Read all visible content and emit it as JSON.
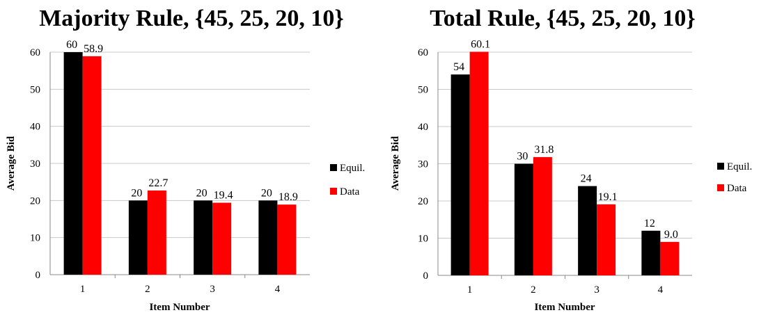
{
  "chart_data": [
    {
      "type": "bar",
      "title": "Majority Rule, {45, 25, 20, 10}",
      "xlabel": "Item Number",
      "ylabel": "Average Bid",
      "categories": [
        "1",
        "2",
        "3",
        "4"
      ],
      "ylim": [
        0,
        60
      ],
      "yticks": [
        0,
        10,
        20,
        30,
        40,
        50,
        60
      ],
      "grid": true,
      "legend_position": "right",
      "series": [
        {
          "name": "Equil.",
          "color": "#000000",
          "values": [
            60,
            20,
            20,
            20
          ],
          "labels": [
            "60",
            "20",
            "20",
            "20"
          ]
        },
        {
          "name": "Data",
          "color": "#ff0000",
          "values": [
            58.9,
            22.7,
            19.4,
            18.9
          ],
          "labels": [
            "58.9",
            "22.7",
            "19.4",
            "18.9"
          ]
        }
      ]
    },
    {
      "type": "bar",
      "title": "Total Rule, {45, 25, 20, 10}",
      "xlabel": "Item Number",
      "ylabel": "Average Bid",
      "categories": [
        "1",
        "2",
        "3",
        "4"
      ],
      "ylim": [
        0,
        60
      ],
      "yticks": [
        0,
        10,
        20,
        30,
        40,
        50,
        60
      ],
      "grid": true,
      "legend_position": "right",
      "series": [
        {
          "name": "Equil.",
          "color": "#000000",
          "values": [
            54,
            30,
            24,
            12
          ],
          "labels": [
            "54",
            "30",
            "24",
            "12"
          ]
        },
        {
          "name": "Data",
          "color": "#ff0000",
          "values": [
            60.1,
            31.8,
            19.1,
            9.0
          ],
          "labels": [
            "60.1",
            "31.8",
            "19.1",
            "9.0"
          ]
        }
      ]
    }
  ]
}
